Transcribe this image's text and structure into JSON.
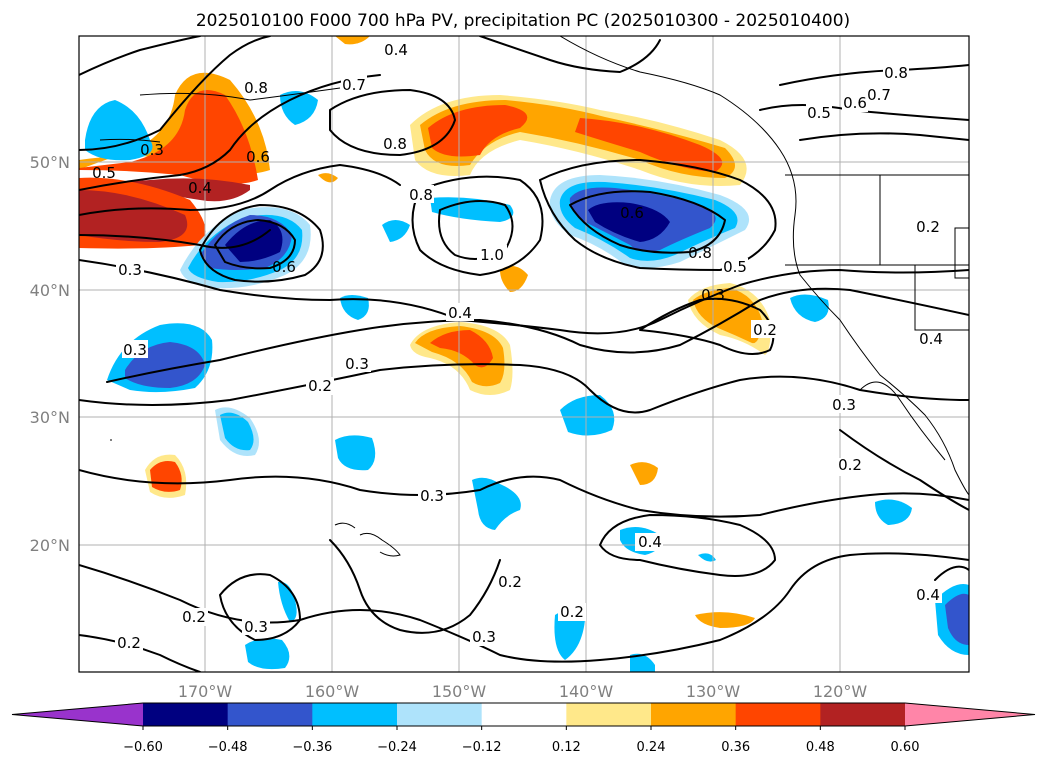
{
  "title": "2025010100 F000 700 hPa PV, precipitation PC (2025010300 - 2025010400)",
  "lat_labels": [
    "50°N",
    "40°N",
    "30°N",
    "20°N"
  ],
  "lon_labels": [
    "170°W",
    "160°W",
    "150°W",
    "140°W",
    "130°W",
    "120°W"
  ],
  "colorbar": {
    "ticks": [
      "−0.60",
      "−0.48",
      "−0.36",
      "−0.24",
      "−0.12",
      "0.12",
      "0.24",
      "0.36",
      "0.48",
      "0.60"
    ],
    "colors": [
      "#9933cc",
      "#000080",
      "#3355cc",
      "#00bfff",
      "#aee3fb",
      "#ffffff",
      "#ffe88a",
      "#ffa500",
      "#ff4500",
      "#b22222",
      "#ff85a8"
    ]
  },
  "contour_labels": [
    "0.4",
    "0.7",
    "0.8",
    "0.6",
    "0.3",
    "0.5",
    "0.4",
    "0.8",
    "0.8",
    "0.7",
    "0.6",
    "0.5",
    "0.8",
    "0.6",
    "0.6",
    "1.0",
    "0.8",
    "0.5",
    "0.4",
    "0.3",
    "0.2",
    "0.3",
    "0.3",
    "0.2",
    "0.3",
    "0.3",
    "0.4",
    "0.2",
    "0.2",
    "0.3",
    "0.2",
    "0.3",
    "0.2",
    "0.4",
    "0.2",
    "0.2",
    "0.3",
    "0.4"
  ]
}
